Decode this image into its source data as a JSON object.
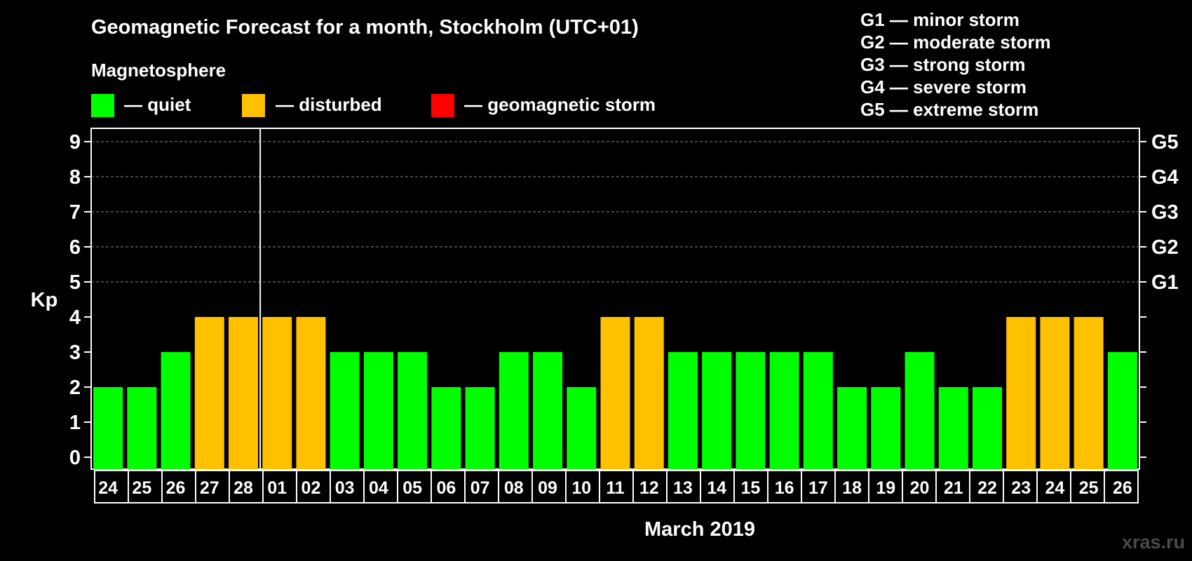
{
  "chart_data": {
    "type": "bar",
    "title": "Geomagnetic Forecast for a month, Stockholm (UTC+01)",
    "legend_title": "Magnetosphere",
    "legend": [
      {
        "key": "quiet",
        "label": "— quiet",
        "color": "#00ff00"
      },
      {
        "key": "disturbed",
        "label": "— disturbed",
        "color": "#ffc000"
      },
      {
        "key": "storm",
        "label": "— geomagnetic storm",
        "color": "#ff0000"
      }
    ],
    "storm_scale": [
      "G1 — minor storm",
      "G2 — moderate storm",
      "G3 — strong storm",
      "G4 — severe storm",
      "G5 — extreme storm"
    ],
    "ylabel": "Kp",
    "xlabel": "March 2019",
    "ylim": [
      0,
      9
    ],
    "yticks": [
      "0",
      "1",
      "2",
      "3",
      "4",
      "5",
      "6",
      "7",
      "8",
      "9"
    ],
    "right_ticks": [
      {
        "kp": 5,
        "label": "G1"
      },
      {
        "kp": 6,
        "label": "G2"
      },
      {
        "kp": 7,
        "label": "G3"
      },
      {
        "kp": 8,
        "label": "G4"
      },
      {
        "kp": 9,
        "label": "G5"
      }
    ],
    "categories": [
      "24",
      "25",
      "26",
      "27",
      "28",
      "01",
      "02",
      "03",
      "04",
      "05",
      "06",
      "07",
      "08",
      "09",
      "10",
      "11",
      "12",
      "13",
      "14",
      "15",
      "16",
      "17",
      "18",
      "19",
      "20",
      "21",
      "22",
      "23",
      "24",
      "25",
      "26"
    ],
    "values": [
      2,
      2,
      3,
      4,
      4,
      4,
      4,
      3,
      3,
      3,
      2,
      2,
      3,
      3,
      2,
      4,
      4,
      3,
      3,
      3,
      3,
      3,
      2,
      2,
      3,
      2,
      2,
      4,
      4,
      4,
      3
    ],
    "month_divider_after": "28"
  },
  "watermark": "xras.ru"
}
